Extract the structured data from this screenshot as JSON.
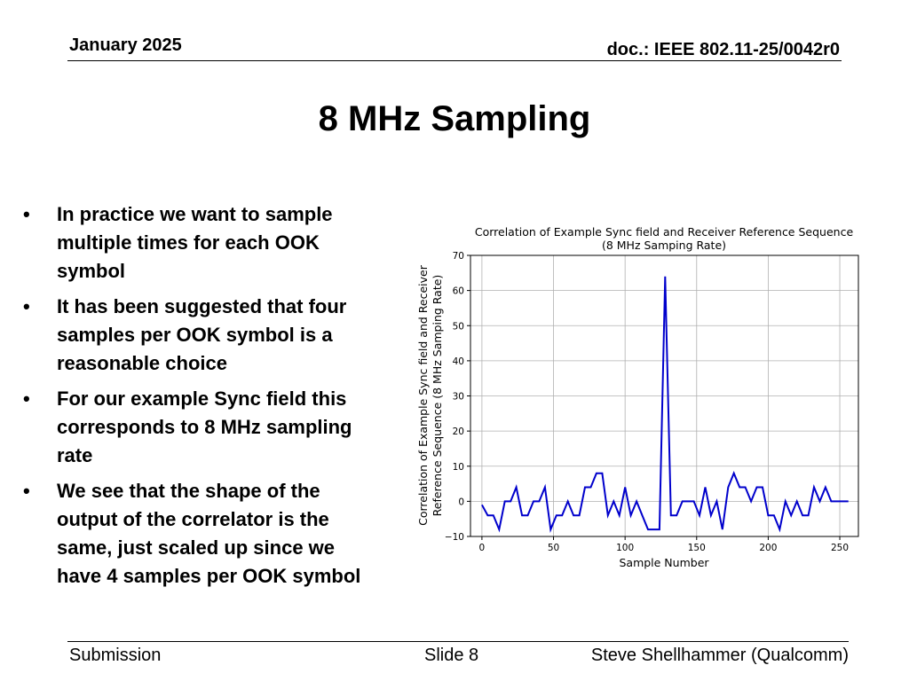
{
  "header": {
    "date": "January 2025",
    "doc": "doc.: IEEE 802.11-25/0042r0"
  },
  "title": "8 MHz Sampling",
  "bullets": [
    "In practice we want to sample multiple times for each OOK symbol",
    "It has been suggested that four samples per OOK symbol is a reasonable choice",
    "For our example Sync field this corresponds to 8 MHz sampling rate",
    "We see that the shape of the output of the correlator is the same, just scaled up since we have 4 samples per OOK symbol"
  ],
  "bullet_glyph": "•",
  "footer": {
    "left": "Submission",
    "center": "Slide 8",
    "right": "Steve Shellhammer (Qualcomm)"
  },
  "chart_data": {
    "type": "line",
    "title_line1": "Correlation of Example Sync field and Receiver Reference Sequence",
    "title_line2": "(8 MHz Samping Rate)",
    "xlabel": "Sample Number",
    "ylabel_line1": "Correlation of Example Sync field and Receiver",
    "ylabel_line2": "Reference Sequence (8 MHz Samping Rate)",
    "xlim": [
      -8,
      263
    ],
    "ylim": [
      -10,
      70
    ],
    "xticks": [
      0,
      50,
      100,
      150,
      200,
      250
    ],
    "yticks": [
      -10,
      0,
      10,
      20,
      30,
      40,
      50,
      60,
      70
    ],
    "ytick_labels": [
      "−10",
      "0",
      "10",
      "20",
      "30",
      "40",
      "50",
      "60",
      "70"
    ],
    "grid": true,
    "line_color": "#0000cc",
    "series": [
      {
        "name": "correlation",
        "x": [
          0,
          4,
          8,
          12,
          16,
          20,
          24,
          28,
          32,
          36,
          40,
          44,
          48,
          52,
          56,
          60,
          64,
          68,
          72,
          76,
          80,
          84,
          88,
          92,
          96,
          100,
          104,
          108,
          112,
          116,
          120,
          124,
          128,
          132,
          136,
          140,
          144,
          148,
          152,
          156,
          160,
          164,
          168,
          172,
          176,
          180,
          184,
          188,
          192,
          196,
          200,
          204,
          208,
          212,
          216,
          220,
          224,
          228,
          232,
          236,
          240,
          244,
          248,
          252,
          256
        ],
        "values": [
          -1,
          -4,
          -4,
          -8,
          0,
          0,
          4,
          -4,
          -4,
          0,
          0,
          4,
          -8,
          -4,
          -4,
          0,
          -4,
          -4,
          4,
          4,
          8,
          8,
          -4,
          0,
          -4,
          4,
          -4,
          0,
          -4,
          -8,
          -8,
          -8,
          64,
          -4,
          -4,
          0,
          0,
          0,
          -4,
          4,
          -4,
          0,
          -8,
          4,
          8,
          4,
          4,
          0,
          4,
          4,
          -4,
          -4,
          -8,
          0,
          -4,
          0,
          -4,
          -4,
          4,
          0,
          4,
          0,
          0,
          0,
          0
        ]
      }
    ]
  }
}
